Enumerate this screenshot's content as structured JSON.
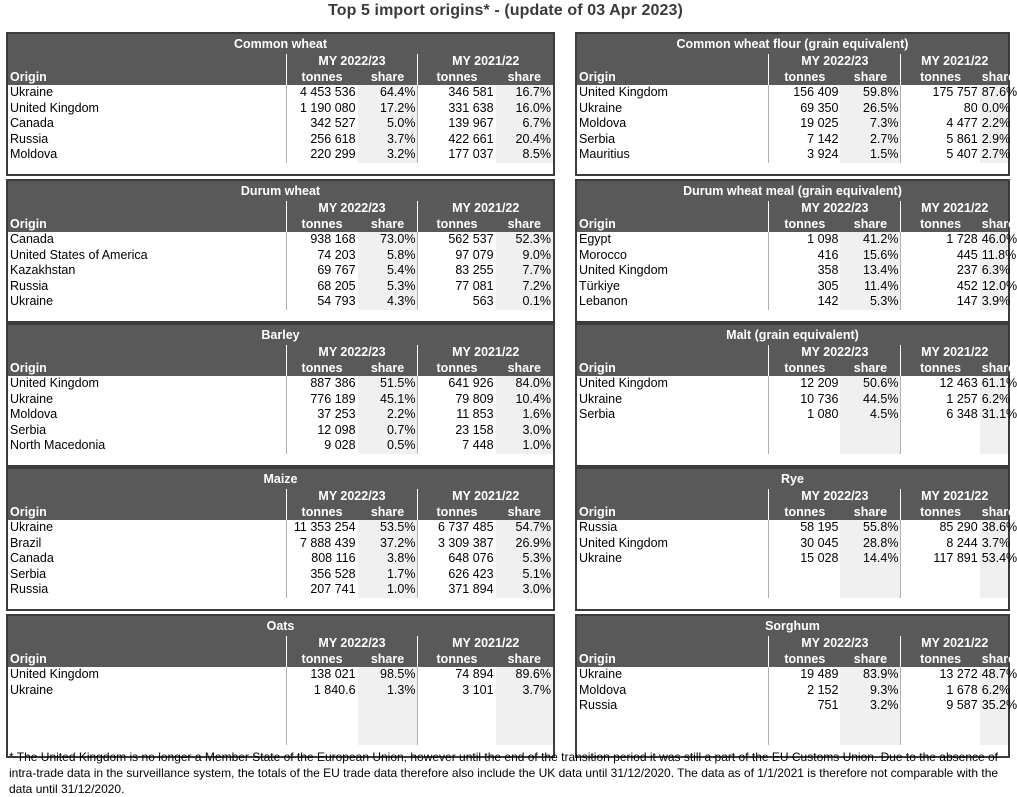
{
  "title": "Top 5 import origins* - (update of 03 Apr 2023)",
  "labels": {
    "origin": "Origin",
    "my_current": "MY 2022/23",
    "my_previous": "MY 2021/22",
    "tonnes": "tonnes",
    "share": "share"
  },
  "panels": [
    {
      "title": "Common wheat",
      "rows": [
        {
          "origin": "Ukraine",
          "t1": "4 453 536",
          "s1": "64.4%",
          "t2": "346 581",
          "s2": "16.7%"
        },
        {
          "origin": "United Kingdom",
          "t1": "1 190 080",
          "s1": "17.2%",
          "t2": "331 638",
          "s2": "16.0%"
        },
        {
          "origin": "Canada",
          "t1": "342 527",
          "s1": "5.0%",
          "t2": "139 967",
          "s2": "6.7%"
        },
        {
          "origin": "Russia",
          "t1": "256 618",
          "s1": "3.7%",
          "t2": "422 661",
          "s2": "20.4%"
        },
        {
          "origin": "Moldova",
          "t1": "220 299",
          "s1": "3.2%",
          "t2": "177 037",
          "s2": "8.5%"
        }
      ]
    },
    {
      "title": "Common wheat flour (grain equivalent)",
      "rows": [
        {
          "origin": "United Kingdom",
          "t1": "156 409",
          "s1": "59.8%",
          "t2": "175 757",
          "s2": "87.6%"
        },
        {
          "origin": "Ukraine",
          "t1": "69 350",
          "s1": "26.5%",
          "t2": "80",
          "s2": "0.0%"
        },
        {
          "origin": "Moldova",
          "t1": "19 025",
          "s1": "7.3%",
          "t2": "4 477",
          "s2": "2.2%"
        },
        {
          "origin": "Serbia",
          "t1": "7 142",
          "s1": "2.7%",
          "t2": "5 861",
          "s2": "2.9%"
        },
        {
          "origin": "Mauritius",
          "t1": "3 924",
          "s1": "1.5%",
          "t2": "5 407",
          "s2": "2.7%"
        }
      ]
    },
    {
      "title": "Durum wheat",
      "rows": [
        {
          "origin": "Canada",
          "t1": "938 168",
          "s1": "73.0%",
          "t2": "562 537",
          "s2": "52.3%"
        },
        {
          "origin": "United States of America",
          "t1": "74 203",
          "s1": "5.8%",
          "t2": "97 079",
          "s2": "9.0%"
        },
        {
          "origin": "Kazakhstan",
          "t1": "69 767",
          "s1": "5.4%",
          "t2": "83 255",
          "s2": "7.7%"
        },
        {
          "origin": "Russia",
          "t1": "68 205",
          "s1": "5.3%",
          "t2": "77 081",
          "s2": "7.2%"
        },
        {
          "origin": "Ukraine",
          "t1": "54 793",
          "s1": "4.3%",
          "t2": "563",
          "s2": "0.1%"
        }
      ]
    },
    {
      "title": "Durum wheat meal (grain equivalent)",
      "rows": [
        {
          "origin": "Egypt",
          "t1": "1 098",
          "s1": "41.2%",
          "t2": "1 728",
          "s2": "46.0%"
        },
        {
          "origin": "Morocco",
          "t1": "416",
          "s1": "15.6%",
          "t2": "445",
          "s2": "11.8%"
        },
        {
          "origin": "United Kingdom",
          "t1": "358",
          "s1": "13.4%",
          "t2": "237",
          "s2": "6.3%"
        },
        {
          "origin": "Türkiye",
          "t1": "305",
          "s1": "11.4%",
          "t2": "452",
          "s2": "12.0%"
        },
        {
          "origin": "Lebanon",
          "t1": "142",
          "s1": "5.3%",
          "t2": "147",
          "s2": "3.9%"
        }
      ]
    },
    {
      "title": "Barley",
      "rows": [
        {
          "origin": "United Kingdom",
          "t1": "887 386",
          "s1": "51.5%",
          "t2": "641 926",
          "s2": "84.0%"
        },
        {
          "origin": "Ukraine",
          "t1": "776 189",
          "s1": "45.1%",
          "t2": "79 809",
          "s2": "10.4%"
        },
        {
          "origin": "Moldova",
          "t1": "37 253",
          "s1": "2.2%",
          "t2": "11 853",
          "s2": "1.6%"
        },
        {
          "origin": "Serbia",
          "t1": "12 098",
          "s1": "0.7%",
          "t2": "23 158",
          "s2": "3.0%"
        },
        {
          "origin": "North Macedonia",
          "t1": "9 028",
          "s1": "0.5%",
          "t2": "7 448",
          "s2": "1.0%"
        }
      ]
    },
    {
      "title": "Malt (grain equivalent)",
      "rows": [
        {
          "origin": "United Kingdom",
          "t1": "12 209",
          "s1": "50.6%",
          "t2": "12 463",
          "s2": "61.1%"
        },
        {
          "origin": "Ukraine",
          "t1": "10 736",
          "s1": "44.5%",
          "t2": "1 257",
          "s2": "6.2%"
        },
        {
          "origin": "Serbia",
          "t1": "1 080",
          "s1": "4.5%",
          "t2": "6 348",
          "s2": "31.1%"
        }
      ]
    },
    {
      "title": "Maize",
      "rows": [
        {
          "origin": "Ukraine",
          "t1": "11 353 254",
          "s1": "53.5%",
          "t2": "6 737 485",
          "s2": "54.7%"
        },
        {
          "origin": "Brazil",
          "t1": "7 888 439",
          "s1": "37.2%",
          "t2": "3 309 387",
          "s2": "26.9%"
        },
        {
          "origin": "Canada",
          "t1": "808 116",
          "s1": "3.8%",
          "t2": "648 076",
          "s2": "5.3%"
        },
        {
          "origin": "Serbia",
          "t1": "356 528",
          "s1": "1.7%",
          "t2": "626 423",
          "s2": "5.1%"
        },
        {
          "origin": "Russia",
          "t1": "207 741",
          "s1": "1.0%",
          "t2": "371 894",
          "s2": "3.0%"
        }
      ]
    },
    {
      "title": "Rye",
      "rows": [
        {
          "origin": "Russia",
          "t1": "58 195",
          "s1": "55.8%",
          "t2": "85 290",
          "s2": "38.6%"
        },
        {
          "origin": "United Kingdom",
          "t1": "30 045",
          "s1": "28.8%",
          "t2": "8 244",
          "s2": "3.7%"
        },
        {
          "origin": "Ukraine",
          "t1": "15 028",
          "s1": "14.4%",
          "t2": "117 891",
          "s2": "53.4%"
        }
      ]
    },
    {
      "title": "Oats",
      "rows": [
        {
          "origin": "United Kingdom",
          "t1": "138 021",
          "s1": "98.5%",
          "t2": "74 894",
          "s2": "89.6%"
        },
        {
          "origin": "Ukraine",
          "t1": "1 840.6",
          "s1": "1.3%",
          "t2": "3 101",
          "s2": "3.7%"
        }
      ]
    },
    {
      "title": "Sorghum",
      "rows": [
        {
          "origin": "Ukraine",
          "t1": "19 489",
          "s1": "83.9%",
          "t2": "13 272",
          "s2": "48.7%"
        },
        {
          "origin": "Moldova",
          "t1": "2 152",
          "s1": "9.3%",
          "t2": "1 678",
          "s2": "6.2%"
        },
        {
          "origin": "Russia",
          "t1": "751",
          "s1": "3.2%",
          "t2": "9 587",
          "s2": "35.2%"
        }
      ]
    }
  ],
  "footnote": "* The United Kingdom is no longer a Member State of the European Union, however until the end of the transition period it was still a part of the EU Customs Union. Due to the absence of intra-trade data in the surveillance system, the totals of the EU trade data  therefore also include the UK data until 31/12/2020. The data as of 1/1/2021 is therefore not comparable with the data until 31/12/2020."
}
